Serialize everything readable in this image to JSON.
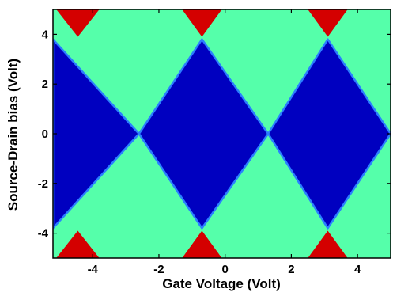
{
  "chart_data": {
    "type": "heatmap",
    "title": "",
    "xlabel": "Gate Voltage (Volt)",
    "ylabel": "Source-Drain bias (Volt)",
    "xlim": [
      -5.2,
      5.0
    ],
    "ylim": [
      -5.0,
      5.0
    ],
    "xticks": [
      -4,
      -2,
      0,
      2,
      4
    ],
    "yticks": [
      -4,
      -2,
      0,
      2,
      4
    ],
    "grid": false,
    "legend": "none",
    "colors": {
      "background": "#55ffaa",
      "blockade": "#0000c0",
      "multi_channel": "#d40000",
      "boundary": "#2a7fff"
    },
    "regions": [
      {
        "kind": "blockade",
        "points": [
          [
            -5.2,
            3.8
          ],
          [
            -2.6,
            0.0
          ],
          [
            -5.2,
            -3.8
          ]
        ]
      },
      {
        "kind": "blockade",
        "points": [
          [
            -0.7,
            3.8
          ],
          [
            1.3,
            0.0
          ],
          [
            -0.7,
            -3.8
          ],
          [
            -2.6,
            0.0
          ]
        ]
      },
      {
        "kind": "blockade",
        "points": [
          [
            3.1,
            3.8
          ],
          [
            5.0,
            0.0
          ],
          [
            3.1,
            -3.8
          ],
          [
            1.3,
            0.0
          ]
        ]
      },
      {
        "kind": "multi_channel",
        "points": [
          [
            -5.1,
            5.0
          ],
          [
            -3.8,
            5.0
          ],
          [
            -4.45,
            3.9
          ]
        ]
      },
      {
        "kind": "multi_channel",
        "points": [
          [
            -1.3,
            5.0
          ],
          [
            -0.1,
            5.0
          ],
          [
            -0.7,
            3.9
          ]
        ]
      },
      {
        "kind": "multi_channel",
        "points": [
          [
            2.5,
            5.0
          ],
          [
            3.7,
            5.0
          ],
          [
            3.1,
            3.9
          ]
        ]
      },
      {
        "kind": "multi_channel",
        "points": [
          [
            -5.1,
            -5.0
          ],
          [
            -3.8,
            -5.0
          ],
          [
            -4.45,
            -3.9
          ]
        ]
      },
      {
        "kind": "multi_channel",
        "points": [
          [
            -1.3,
            -5.0
          ],
          [
            -0.1,
            -5.0
          ],
          [
            -0.7,
            -3.9
          ]
        ]
      },
      {
        "kind": "multi_channel",
        "points": [
          [
            2.5,
            -5.0
          ],
          [
            3.7,
            -5.0
          ],
          [
            3.1,
            -3.9
          ]
        ]
      }
    ]
  }
}
